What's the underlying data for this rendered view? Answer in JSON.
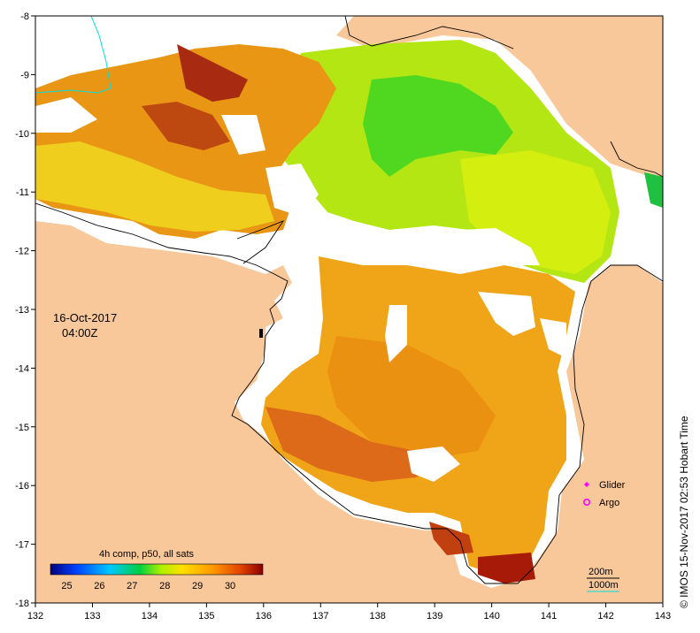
{
  "map": {
    "lon_range": [
      132,
      143
    ],
    "lat_range": [
      -18,
      -8
    ],
    "lon_ticks": [
      "132",
      "133",
      "134",
      "135",
      "136",
      "137",
      "138",
      "139",
      "140",
      "141",
      "142",
      "143"
    ],
    "lat_ticks": [
      "-8",
      "-9",
      "-10",
      "-11",
      "-12",
      "-13",
      "-14",
      "-15",
      "-16",
      "-17",
      "-18"
    ],
    "date": "16-Oct-2017",
    "time": "04:00Z",
    "credit": "© IMOS 15-Nov-2017 02:53 Hobart Time"
  },
  "colorbar": {
    "title": "4h comp, p50, all sats",
    "ticks": [
      "25",
      "26",
      "27",
      "28",
      "29",
      "30"
    ],
    "range": [
      24.5,
      31
    ]
  },
  "legend": {
    "glider": "Glider",
    "argo": "Argo",
    "iso_200": "200m",
    "iso_1000": "1000m"
  },
  "colors": {
    "land": "#f8c89a",
    "coast": "#000000",
    "bathy_200": "#000000",
    "bathy_1000": "#00e0e0",
    "glider": "#ff00ff",
    "argo": "#ff00ff"
  }
}
